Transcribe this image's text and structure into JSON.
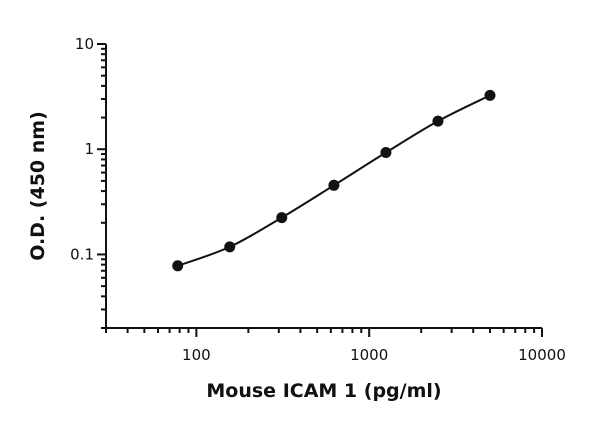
{
  "chart_data": {
    "type": "scatter",
    "xlabel": "Mouse ICAM 1 (pg/ml)",
    "ylabel": "O.D. (450 nm)",
    "x_scale": "log",
    "y_scale": "log",
    "xlim": [
      30,
      10000
    ],
    "ylim": [
      0.02,
      10
    ],
    "x_ticks": [
      100,
      1000,
      10000
    ],
    "x_tick_labels": [
      "100",
      "1000",
      "10000"
    ],
    "y_ticks": [
      0.1,
      1,
      10
    ],
    "y_tick_labels": [
      "0.1",
      "1",
      "10"
    ],
    "grid": false,
    "legend": "none",
    "fit_curve": true,
    "series": [
      {
        "x": [
          78,
          156,
          312,
          625,
          1250,
          2500,
          5000
        ],
        "y": [
          0.078,
          0.118,
          0.224,
          0.454,
          0.93,
          1.85,
          3.25
        ]
      }
    ]
  }
}
